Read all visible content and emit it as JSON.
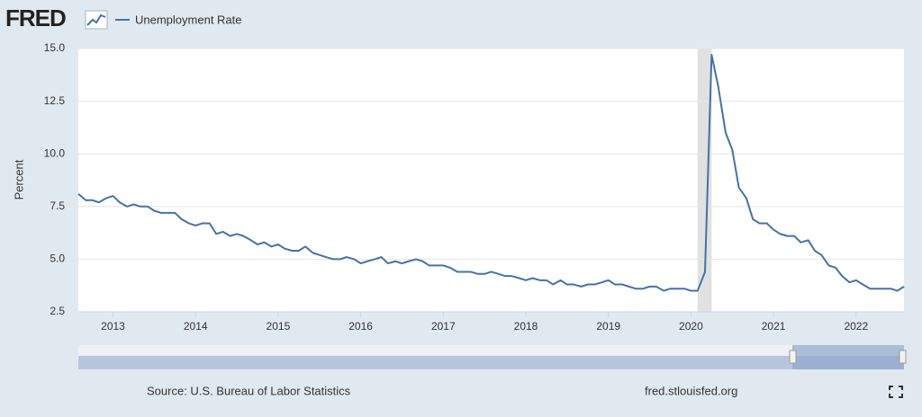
{
  "logo": "FRED",
  "footer": {
    "source": "Source: U.S. Bureau of Labor Statistics",
    "url": "fred.stlouisfed.org"
  },
  "chart_data": {
    "type": "line",
    "y_label": "Percent",
    "series": [
      {
        "name": "Unemployment Rate",
        "color": "#4572a7",
        "values": [
          8.1,
          7.8,
          7.8,
          7.7,
          7.9,
          8.0,
          7.7,
          7.5,
          7.6,
          7.5,
          7.5,
          7.3,
          7.2,
          7.2,
          7.2,
          6.9,
          6.7,
          6.6,
          6.7,
          6.7,
          6.2,
          6.3,
          6.1,
          6.2,
          6.1,
          5.9,
          5.7,
          5.8,
          5.6,
          5.7,
          5.5,
          5.4,
          5.4,
          5.6,
          5.3,
          5.2,
          5.1,
          5.0,
          5.0,
          5.1,
          5.0,
          4.8,
          4.9,
          5.0,
          5.1,
          4.8,
          4.9,
          4.8,
          4.9,
          5.0,
          4.9,
          4.7,
          4.7,
          4.7,
          4.6,
          4.4,
          4.4,
          4.4,
          4.3,
          4.3,
          4.4,
          4.3,
          4.2,
          4.2,
          4.1,
          4.0,
          4.1,
          4.0,
          4.0,
          3.8,
          4.0,
          3.8,
          3.8,
          3.7,
          3.8,
          3.8,
          3.9,
          4.0,
          3.8,
          3.8,
          3.7,
          3.6,
          3.6,
          3.7,
          3.7,
          3.5,
          3.6,
          3.6,
          3.6,
          3.5,
          3.5,
          4.4,
          14.7,
          13.2,
          11.0,
          10.2,
          8.4,
          7.9,
          6.9,
          6.7,
          6.7,
          6.4,
          6.2,
          6.1,
          6.1,
          5.8,
          5.9,
          5.4,
          5.2,
          4.7,
          4.6,
          4.2,
          3.9,
          4.0,
          3.8,
          3.6,
          3.6,
          3.6,
          3.6,
          3.5,
          3.7
        ]
      }
    ],
    "x": [
      2012.58,
      2012.67,
      2012.75,
      2012.83,
      2012.92,
      2013.0,
      2013.08,
      2013.17,
      2013.25,
      2013.33,
      2013.42,
      2013.5,
      2013.58,
      2013.67,
      2013.75,
      2013.83,
      2013.92,
      2014.0,
      2014.08,
      2014.17,
      2014.25,
      2014.33,
      2014.42,
      2014.5,
      2014.58,
      2014.67,
      2014.75,
      2014.83,
      2014.92,
      2015.0,
      2015.08,
      2015.17,
      2015.25,
      2015.33,
      2015.42,
      2015.5,
      2015.58,
      2015.67,
      2015.75,
      2015.83,
      2015.92,
      2016.0,
      2016.08,
      2016.17,
      2016.25,
      2016.33,
      2016.42,
      2016.5,
      2016.58,
      2016.67,
      2016.75,
      2016.83,
      2016.92,
      2017.0,
      2017.08,
      2017.17,
      2017.25,
      2017.33,
      2017.42,
      2017.5,
      2017.58,
      2017.67,
      2017.75,
      2017.83,
      2017.92,
      2018.0,
      2018.08,
      2018.17,
      2018.25,
      2018.33,
      2018.42,
      2018.5,
      2018.58,
      2018.67,
      2018.75,
      2018.83,
      2018.92,
      2019.0,
      2019.08,
      2019.17,
      2019.25,
      2019.33,
      2019.42,
      2019.5,
      2019.58,
      2019.67,
      2019.75,
      2019.83,
      2019.92,
      2020.0,
      2020.08,
      2020.17,
      2020.25,
      2020.33,
      2020.42,
      2020.5,
      2020.58,
      2020.67,
      2020.75,
      2020.83,
      2020.92,
      2021.0,
      2021.08,
      2021.17,
      2021.25,
      2021.33,
      2021.42,
      2021.5,
      2021.58,
      2021.67,
      2021.75,
      2021.83,
      2021.92,
      2022.0,
      2022.08,
      2022.17,
      2022.25,
      2022.33,
      2022.42,
      2022.5,
      2022.58
    ],
    "xlim": [
      2012.58,
      2022.58
    ],
    "xticks": [
      2013,
      2014,
      2015,
      2016,
      2017,
      2018,
      2019,
      2020,
      2021,
      2022
    ],
    "ylim": [
      2.5,
      15.0
    ],
    "yticks": [
      {
        "value": 2.5,
        "label": "2.5"
      },
      {
        "value": 5.0,
        "label": "5.0"
      },
      {
        "value": 7.5,
        "label": "7.5"
      },
      {
        "value": 10.0,
        "label": "10.0"
      },
      {
        "value": 12.5,
        "label": "12.5"
      },
      {
        "value": 15.0,
        "label": "15.0"
      }
    ],
    "recessions": [
      [
        2020.08,
        2020.25
      ]
    ],
    "recession_color": "#e1e1e1",
    "grid": true
  }
}
